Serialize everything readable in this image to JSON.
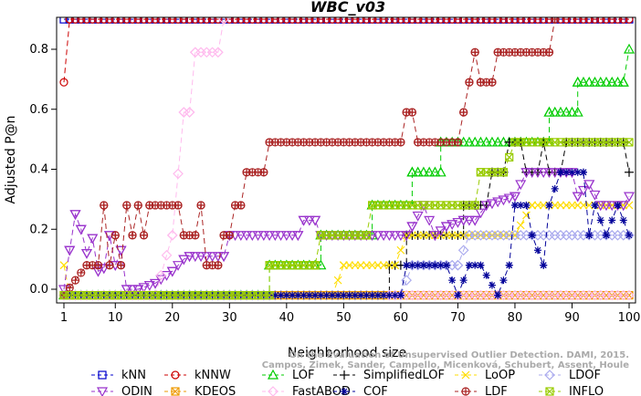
{
  "chart_data": {
    "type": "line",
    "title": "WBC_v03",
    "xlabel": "Neighborhood size",
    "ylabel": "Adjusted P@n",
    "xlim": [
      1,
      100
    ],
    "ylim": [
      -0.03,
      0.9
    ],
    "xticks": [
      1,
      10,
      20,
      30,
      40,
      50,
      60,
      70,
      80,
      90,
      100
    ],
    "xtick_labels": [
      "1",
      "10",
      "20",
      "30",
      "40",
      "50",
      "60",
      "70",
      "80",
      "90",
      "100"
    ],
    "yticks": [
      0.0,
      0.2,
      0.4,
      0.6,
      0.8
    ],
    "ytick_labels": [
      "0.0",
      "0.2",
      "0.4",
      "0.6",
      "0.8"
    ],
    "grid": false,
    "legend_position": "bottom",
    "credit": "Campos, Zimek, Sander, Campello, Micenková, Schubert, Assent, Houle. On the Evaluation of Unsupervised Outlier Detection. DAMI, 2015.",
    "credit_lines": [
      "On the Evaluation of Unsupervised Outlier Detection. DAMI, 2015.",
      "Campos, Zimek, Sander, Campello, Micenková, Schubert, Assent, Houle"
    ],
    "series": [
      {
        "name": "kNN",
        "color": "#0000cc",
        "marker": "square",
        "dash": "6,4",
        "segments": [
          [
            [
              1,
              0.9
            ],
            [
              100,
              0.9
            ]
          ]
        ]
      },
      {
        "name": "kNNW",
        "color": "#cc0000",
        "marker": "circle",
        "dash": "6,4",
        "segments": [
          [
            [
              1,
              0.69
            ],
            [
              2,
              0.9
            ],
            [
              100,
              0.9
            ]
          ]
        ]
      },
      {
        "name": "LOF",
        "color": "#00cc00",
        "marker": "triangle-up",
        "dash": "6,4",
        "segments": [
          [
            [
              1,
              -0.02
            ],
            [
              37,
              -0.02
            ],
            [
              37,
              0.08
            ],
            [
              46,
              0.08
            ],
            [
              46,
              0.18
            ],
            [
              55,
              0.18
            ],
            [
              55,
              0.28
            ],
            [
              62,
              0.28
            ],
            [
              62,
              0.39
            ],
            [
              67,
              0.39
            ],
            [
              67,
              0.49
            ],
            [
              86,
              0.49
            ],
            [
              86,
              0.59
            ],
            [
              91,
              0.59
            ],
            [
              91,
              0.69
            ],
            [
              99,
              0.69
            ],
            [
              100,
              0.8
            ]
          ]
        ]
      },
      {
        "name": "SimplifiedLOF",
        "color": "#000000",
        "marker": "plus",
        "dash": "6,4",
        "segments": [
          [
            [
              1,
              -0.02
            ],
            [
              58,
              -0.02
            ],
            [
              58,
              0.08
            ],
            [
              61,
              0.08
            ],
            [
              61,
              0.18
            ],
            [
              71,
              0.18
            ],
            [
              71,
              0.28
            ],
            [
              75,
              0.28
            ],
            [
              76,
              0.39
            ],
            [
              78,
              0.39
            ],
            [
              79,
              0.49
            ],
            [
              81,
              0.49
            ],
            [
              82,
              0.39
            ],
            [
              84,
              0.39
            ],
            [
              85,
              0.49
            ],
            [
              86,
              0.39
            ],
            [
              88,
              0.39
            ],
            [
              89,
              0.49
            ],
            [
              99,
              0.49
            ],
            [
              100,
              0.39
            ]
          ]
        ]
      },
      {
        "name": "LoOP",
        "color": "#ffdd00",
        "marker": "x",
        "dash": "6,4",
        "segments": [
          [
            [
              1,
              0.08
            ],
            [
              2,
              -0.02
            ],
            [
              48,
              -0.02
            ],
            [
              50,
              0.08
            ],
            [
              59,
              0.08
            ],
            [
              61,
              0.18
            ],
            [
              80,
              0.18
            ],
            [
              83,
              0.28
            ],
            [
              100,
              0.28
            ]
          ]
        ]
      },
      {
        "name": "LDOF",
        "color": "#aaaaee",
        "marker": "diamond",
        "dash": "6,4",
        "segments": [
          [
            [
              1,
              -0.02
            ],
            [
              60,
              -0.02
            ],
            [
              62,
              0.08
            ],
            [
              70,
              0.08
            ],
            [
              72,
              0.18
            ],
            [
              100,
              0.18
            ]
          ]
        ]
      },
      {
        "name": "ODIN",
        "color": "#9933cc",
        "marker": "triangle-down",
        "dash": "6,4",
        "segments": [
          [
            [
              1,
              0.0
            ],
            [
              2,
              0.13
            ],
            [
              3,
              0.25
            ],
            [
              4,
              0.2
            ],
            [
              5,
              0.12
            ],
            [
              6,
              0.17
            ],
            [
              7,
              0.06
            ],
            [
              8,
              0.07
            ],
            [
              9,
              0.18
            ],
            [
              10,
              0.08
            ],
            [
              11,
              0.13
            ],
            [
              12,
              0.0
            ],
            [
              14,
              0.0
            ],
            [
              17,
              0.02
            ],
            [
              20,
              0.06
            ],
            [
              22,
              0.1
            ],
            [
              23,
              0.11
            ],
            [
              29,
              0.11
            ],
            [
              30,
              0.18
            ],
            [
              42,
              0.18
            ],
            [
              43,
              0.23
            ],
            [
              45,
              0.23
            ],
            [
              46,
              0.18
            ],
            [
              61,
              0.18
            ],
            [
              62,
              0.21
            ],
            [
              64,
              0.28
            ],
            [
              66,
              0.18
            ],
            [
              68,
              0.21
            ],
            [
              71,
              0.23
            ],
            [
              73,
              0.23
            ],
            [
              75,
              0.28
            ],
            [
              80,
              0.31
            ],
            [
              82,
              0.39
            ],
            [
              90,
              0.39
            ],
            [
              91,
              0.31
            ],
            [
              93,
              0.35
            ],
            [
              95,
              0.28
            ],
            [
              99,
              0.28
            ],
            [
              100,
              0.31
            ]
          ]
        ]
      },
      {
        "name": "KDEOS",
        "color": "#ee9900",
        "marker": "square-x",
        "dash": "6,4",
        "segments": [
          [
            [
              1,
              -0.02
            ],
            [
              100,
              -0.02
            ]
          ]
        ]
      },
      {
        "name": "FastABOD",
        "color": "#ffbbee",
        "marker": "diamond",
        "dash": "6,4",
        "segments": [
          [
            [
              1,
              -0.02
            ],
            [
              17,
              -0.02
            ],
            [
              20,
              0.18
            ],
            [
              22,
              0.59
            ],
            [
              23,
              0.59
            ],
            [
              24,
              0.79
            ],
            [
              28,
              0.79
            ],
            [
              29,
              0.9
            ]
          ],
          [
            [
              58,
              -0.02
            ],
            [
              100,
              -0.02
            ]
          ]
        ]
      },
      {
        "name": "COF",
        "color": "#000099",
        "marker": "star",
        "dash": "6,4",
        "segments": [
          [
            [
              1,
              -0.02
            ],
            [
              60,
              -0.02
            ],
            [
              61,
              0.08
            ],
            [
              64,
              0.08
            ],
            [
              66,
              0.08
            ],
            [
              68,
              0.08
            ],
            [
              70,
              -0.02
            ],
            [
              72,
              0.08
            ],
            [
              74,
              0.08
            ],
            [
              77,
              -0.02
            ],
            [
              79,
              0.08
            ],
            [
              80,
              0.28
            ],
            [
              82,
              0.28
            ],
            [
              83,
              0.18
            ],
            [
              85,
              0.08
            ],
            [
              86,
              0.28
            ],
            [
              88,
              0.39
            ],
            [
              92,
              0.39
            ],
            [
              93,
              0.18
            ],
            [
              94,
              0.28
            ],
            [
              96,
              0.18
            ],
            [
              98,
              0.28
            ],
            [
              100,
              0.18
            ]
          ]
        ]
      },
      {
        "name": "LDF",
        "color": "#aa2222",
        "marker": "circle-plus",
        "dash": "6,4",
        "segments": [
          [
            [
              1,
              -0.02
            ],
            [
              5,
              0.08
            ],
            [
              7,
              0.08
            ],
            [
              8,
              0.28
            ],
            [
              9,
              0.08
            ],
            [
              10,
              0.18
            ],
            [
              11,
              0.08
            ],
            [
              12,
              0.28
            ],
            [
              13,
              0.18
            ],
            [
              14,
              0.28
            ],
            [
              15,
              0.18
            ],
            [
              16,
              0.28
            ],
            [
              21,
              0.28
            ],
            [
              22,
              0.18
            ],
            [
              24,
              0.18
            ],
            [
              25,
              0.28
            ],
            [
              26,
              0.08
            ],
            [
              28,
              0.08
            ],
            [
              29,
              0.18
            ],
            [
              30,
              0.18
            ],
            [
              31,
              0.28
            ],
            [
              32,
              0.28
            ],
            [
              33,
              0.39
            ],
            [
              36,
              0.39
            ],
            [
              37,
              0.49
            ],
            [
              60,
              0.49
            ],
            [
              61,
              0.59
            ],
            [
              62,
              0.59
            ],
            [
              63,
              0.49
            ],
            [
              70,
              0.49
            ],
            [
              71,
              0.59
            ],
            [
              72,
              0.69
            ],
            [
              73,
              0.79
            ],
            [
              74,
              0.69
            ],
            [
              76,
              0.69
            ],
            [
              77,
              0.79
            ],
            [
              86,
              0.79
            ],
            [
              87,
              0.9
            ]
          ]
        ]
      },
      {
        "name": "INFLO",
        "color": "#99cc00",
        "marker": "square-x",
        "dash": "6,4",
        "segments": [
          [
            [
              1,
              -0.02
            ],
            [
              37,
              -0.02
            ],
            [
              37,
              0.08
            ],
            [
              45,
              0.08
            ],
            [
              46,
              0.18
            ],
            [
              54,
              0.18
            ],
            [
              55,
              0.28
            ],
            [
              73,
              0.28
            ],
            [
              74,
              0.39
            ],
            [
              78,
              0.39
            ],
            [
              80,
              0.49
            ],
            [
              100,
              0.49
            ]
          ]
        ]
      }
    ]
  }
}
